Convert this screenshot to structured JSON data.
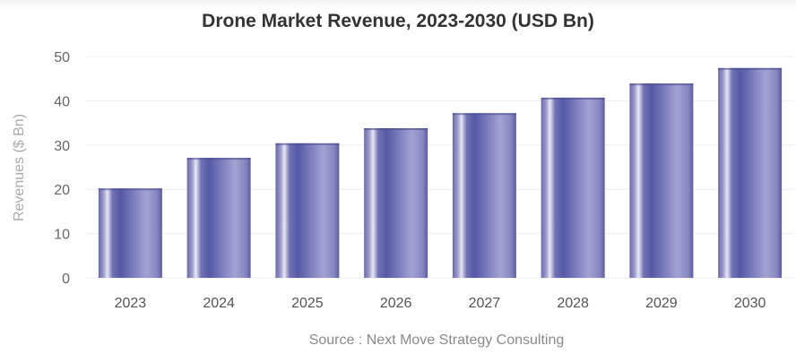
{
  "chart_data": {
    "type": "bar",
    "title": "Drone Market Revenue, 2023-2030 (USD Bn)",
    "xlabel": "",
    "ylabel": "Revenues ($ Bn)",
    "categories": [
      "2023",
      "2024",
      "2025",
      "2026",
      "2027",
      "2028",
      "2029",
      "2030"
    ],
    "values": [
      20.2,
      27.1,
      30.4,
      33.8,
      37.2,
      40.7,
      43.9,
      47.4
    ],
    "ylim": [
      0,
      50
    ],
    "yticks": [
      "0",
      "10",
      "20",
      "30",
      "40",
      "50"
    ],
    "grid": true,
    "legend": "none",
    "bar_color": "#5a5ca8",
    "source": "Source : Next Move Strategy Consulting"
  }
}
